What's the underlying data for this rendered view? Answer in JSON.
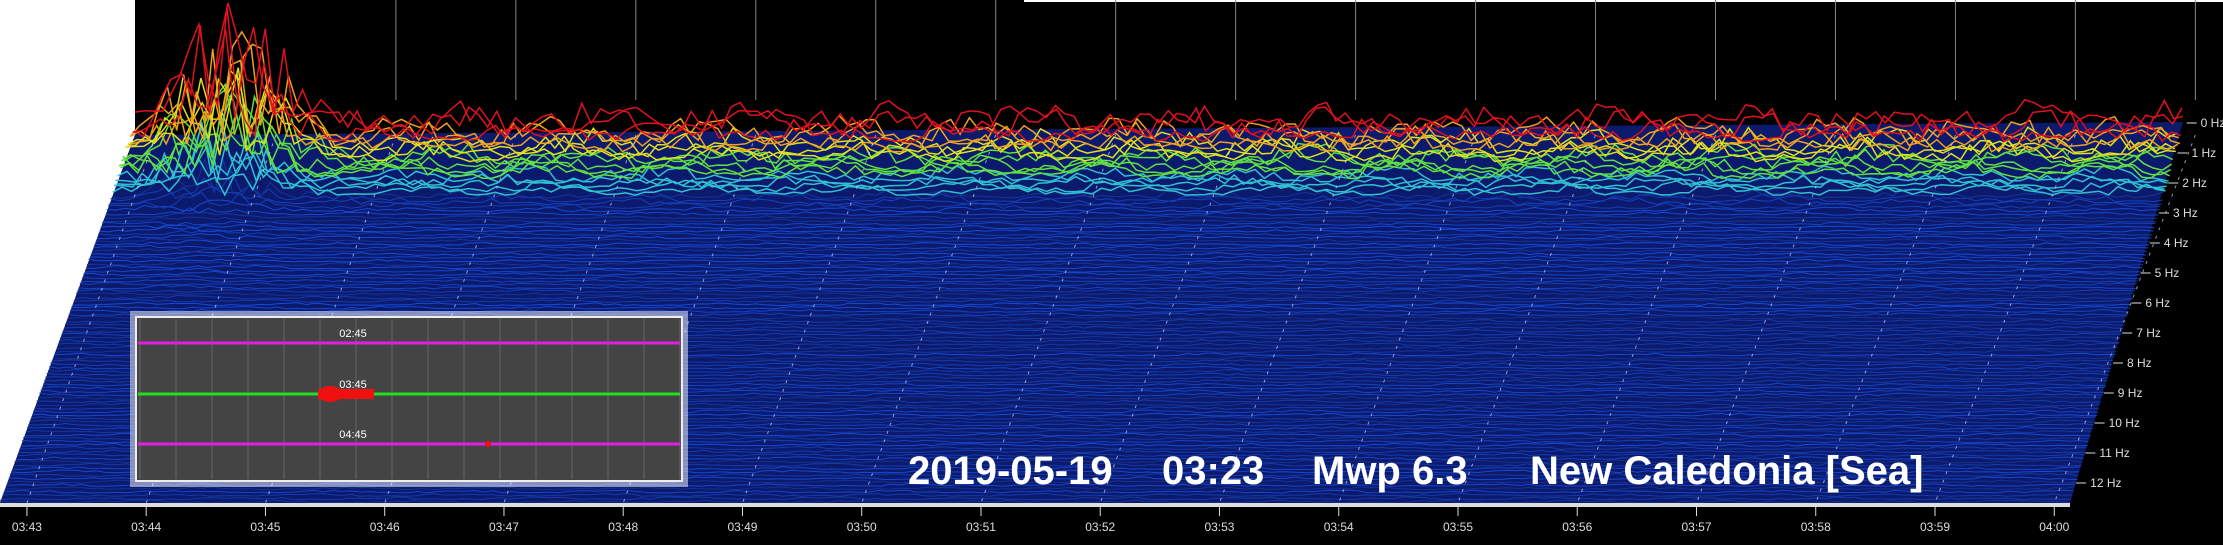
{
  "time_axis": {
    "labels": [
      "03:43",
      "03:44",
      "03:45",
      "03:46",
      "03:47",
      "03:48",
      "03:49",
      "03:50",
      "03:51",
      "03:52",
      "03:53",
      "03:54",
      "03:55",
      "03:56",
      "03:57",
      "03:58",
      "03:59",
      "04:00"
    ]
  },
  "frequency_axis": {
    "labels": [
      "0 Hz",
      "1 Hz",
      "2 Hz",
      "3 Hz",
      "4 Hz",
      "5 Hz",
      "6 Hz",
      "7 Hz",
      "8 Hz",
      "9 Hz",
      "10 Hz",
      "11 Hz",
      "12 Hz"
    ]
  },
  "caption": {
    "date": "2019-05-19",
    "time": "03:23",
    "magnitude": "Mwp 6.3",
    "region": "New Caledonia [Sea]"
  },
  "inset": {
    "labels": [
      "02:45",
      "03:45",
      "04:45"
    ]
  }
}
